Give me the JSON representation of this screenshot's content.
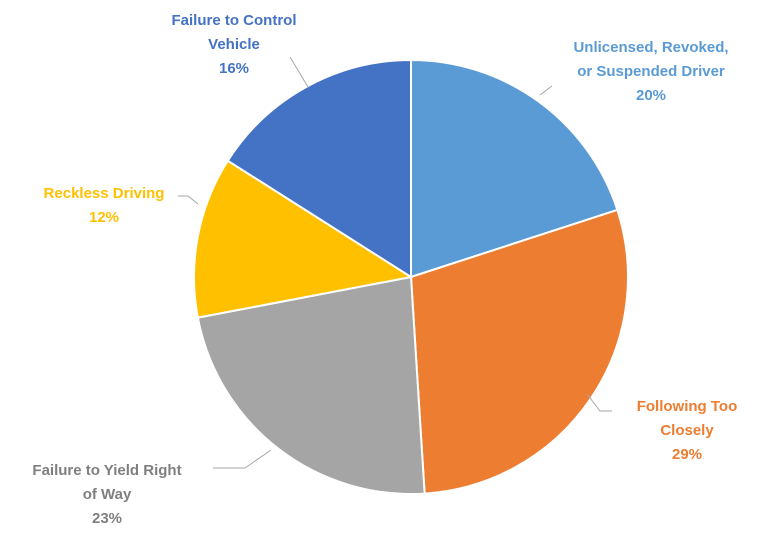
{
  "chart_data": {
    "type": "pie",
    "title": "",
    "start_angle_deg": 0,
    "direction": "clockwise",
    "slices": [
      {
        "label_lines": [
          "Unlicensed, Revoked,",
          "or Suspended Driver"
        ],
        "percent_label": "20%",
        "value": 20,
        "color": "#5B9BD5",
        "label_color": "#5B9BD5"
      },
      {
        "label_lines": [
          "Following Too",
          "Closely"
        ],
        "percent_label": "29%",
        "value": 29,
        "color": "#ED7D31",
        "label_color": "#ED7D31"
      },
      {
        "label_lines": [
          "Failure to Yield Right",
          "of Way"
        ],
        "percent_label": "23%",
        "value": 23,
        "color": "#A5A5A5",
        "label_color": "#7F7F7F"
      },
      {
        "label_lines": [
          "Reckless Driving"
        ],
        "percent_label": "12%",
        "value": 12,
        "color": "#FFC000",
        "label_color": "#FFC000"
      },
      {
        "label_lines": [
          "Failure to Control",
          "Vehicle"
        ],
        "percent_label": "16%",
        "value": 16,
        "color": "#4472C4",
        "label_color": "#4472C4"
      }
    ],
    "leader_line_color": "#A6A6A6",
    "slice_border_color": "#FFFFFF"
  }
}
